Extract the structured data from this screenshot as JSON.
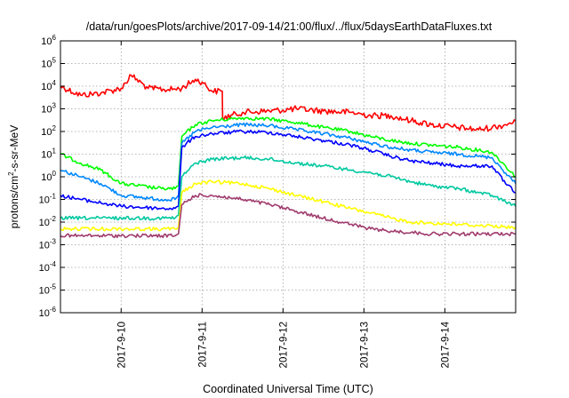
{
  "chart_data": {
    "type": "line",
    "title": "/data/run/goesPlots/archive/2017-09-14/21:00/flux/../flux/5daysEarthDataFluxes.txt",
    "xlabel": "Coordinated Universal Time (UTC)",
    "ylabel_prefix": "protons/cm",
    "ylabel_sup": "2",
    "ylabel_suffix": "-s-sr-MeV",
    "y_scale": "log",
    "ylim": [
      1e-06,
      1000000.0
    ],
    "y_ticks": [
      {
        "base": "10",
        "exp": "-6",
        "value": 1e-06
      },
      {
        "base": "10",
        "exp": "-5",
        "value": 1e-05
      },
      {
        "base": "10",
        "exp": "-4",
        "value": 0.0001
      },
      {
        "base": "10",
        "exp": "-3",
        "value": 0.001
      },
      {
        "base": "10",
        "exp": "-2",
        "value": 0.01
      },
      {
        "base": "10",
        "exp": "-1",
        "value": 0.1
      },
      {
        "base": "10",
        "exp": "0",
        "value": 1
      },
      {
        "base": "10",
        "exp": "1",
        "value": 10
      },
      {
        "base": "10",
        "exp": "2",
        "value": 100
      },
      {
        "base": "10",
        "exp": "3",
        "value": 1000
      },
      {
        "base": "10",
        "exp": "4",
        "value": 10000
      },
      {
        "base": "10",
        "exp": "5",
        "value": 100000
      },
      {
        "base": "10",
        "exp": "6",
        "value": 1000000
      }
    ],
    "xlim": [
      "2017-09-09 06:00",
      "2017-09-14 21:00"
    ],
    "x_ticks": [
      {
        "label": "2017-9-10",
        "value": "2017-09-10 00:00"
      },
      {
        "label": "2017-9-11",
        "value": "2017-09-11 00:00"
      },
      {
        "label": "2017-9-12",
        "value": "2017-09-12 00:00"
      },
      {
        "label": "2017-9-13",
        "value": "2017-09-13 00:00"
      },
      {
        "label": "2017-9-14",
        "value": "2017-09-14 00:00"
      }
    ],
    "grid": true,
    "series": [
      {
        "color": "#ff0000",
        "x": [
          "2017-09-09 06:00",
          "2017-09-09 12:00",
          "2017-09-09 18:00",
          "2017-09-10 00:00",
          "2017-09-10 03:00",
          "2017-09-10 08:00",
          "2017-09-10 14:00",
          "2017-09-10 18:00",
          "2017-09-10 22:00",
          "2017-09-11 00:00",
          "2017-09-11 03:00",
          "2017-09-11 06:00",
          "2017-09-11 06:05",
          "2017-09-11 12:00",
          "2017-09-11 20:00",
          "2017-09-12 04:00",
          "2017-09-12 12:00",
          "2017-09-12 20:00",
          "2017-09-13 02:00",
          "2017-09-13 08:00",
          "2017-09-13 14:00",
          "2017-09-13 20:00",
          "2017-09-14 04:00",
          "2017-09-14 10:00",
          "2017-09-14 14:00",
          "2017-09-14 18:00",
          "2017-09-14 21:00"
        ],
        "y": [
          10000,
          4000,
          5000,
          8000,
          30000,
          8000,
          7000,
          8000,
          20000,
          15000,
          6000,
          6000,
          400,
          700,
          800,
          1000,
          800,
          700,
          500,
          500,
          300,
          200,
          150,
          120,
          150,
          200,
          300
        ]
      },
      {
        "color": "#00ff00",
        "x": [
          "2017-09-09 06:00",
          "2017-09-09 12:00",
          "2017-09-09 18:00",
          "2017-09-10 00:00",
          "2017-09-10 12:00",
          "2017-09-10 16:00",
          "2017-09-10 17:00",
          "2017-09-10 18:00",
          "2017-09-10 22:00",
          "2017-09-11 03:00",
          "2017-09-11 12:00",
          "2017-09-11 20:00",
          "2017-09-12 04:00",
          "2017-09-12 12:00",
          "2017-09-12 20:00",
          "2017-09-13 02:00",
          "2017-09-13 08:00",
          "2017-09-13 14:00",
          "2017-09-13 20:00",
          "2017-09-14 04:00",
          "2017-09-14 10:00",
          "2017-09-14 14:00",
          "2017-09-14 18:00",
          "2017-09-14 21:00"
        ],
        "y": [
          10,
          4,
          2,
          0.5,
          0.3,
          0.3,
          0.4,
          60,
          200,
          300,
          400,
          350,
          250,
          150,
          100,
          60,
          40,
          30,
          25,
          20,
          15,
          12,
          3,
          1
        ]
      },
      {
        "color": "#0088ff",
        "x": [
          "2017-09-09 06:00",
          "2017-09-09 12:00",
          "2017-09-09 18:00",
          "2017-09-10 00:00",
          "2017-09-10 12:00",
          "2017-09-10 16:00",
          "2017-09-10 17:00",
          "2017-09-10 18:00",
          "2017-09-10 22:00",
          "2017-09-11 03:00",
          "2017-09-11 12:00",
          "2017-09-11 20:00",
          "2017-09-12 04:00",
          "2017-09-12 12:00",
          "2017-09-12 20:00",
          "2017-09-13 02:00",
          "2017-09-13 08:00",
          "2017-09-13 14:00",
          "2017-09-13 20:00",
          "2017-09-14 04:00",
          "2017-09-14 10:00",
          "2017-09-14 14:00",
          "2017-09-14 18:00",
          "2017-09-14 21:00"
        ],
        "y": [
          2,
          1,
          0.5,
          0.15,
          0.1,
          0.1,
          0.15,
          30,
          100,
          150,
          200,
          180,
          120,
          80,
          50,
          30,
          20,
          15,
          12,
          10,
          8,
          7,
          1.5,
          0.5
        ]
      },
      {
        "color": "#0000ff",
        "x": [
          "2017-09-09 06:00",
          "2017-09-09 12:00",
          "2017-09-09 18:00",
          "2017-09-10 00:00",
          "2017-09-10 12:00",
          "2017-09-10 16:00",
          "2017-09-10 17:00",
          "2017-09-10 18:00",
          "2017-09-10 22:00",
          "2017-09-11 03:00",
          "2017-09-11 12:00",
          "2017-09-11 20:00",
          "2017-09-12 04:00",
          "2017-09-12 12:00",
          "2017-09-12 20:00",
          "2017-09-13 02:00",
          "2017-09-13 08:00",
          "2017-09-13 14:00",
          "2017-09-13 20:00",
          "2017-09-14 04:00",
          "2017-09-14 10:00",
          "2017-09-14 14:00",
          "2017-09-14 18:00",
          "2017-09-14 21:00"
        ],
        "y": [
          0.15,
          0.1,
          0.07,
          0.05,
          0.04,
          0.04,
          0.05,
          20,
          60,
          80,
          100,
          90,
          60,
          40,
          25,
          15,
          8,
          5,
          4,
          3,
          3,
          3,
          0.5,
          0.2
        ]
      },
      {
        "color": "#00c8a0",
        "x": [
          "2017-09-09 06:00",
          "2017-09-09 12:00",
          "2017-09-09 18:00",
          "2017-09-10 00:00",
          "2017-09-10 12:00",
          "2017-09-10 16:00",
          "2017-09-10 17:00",
          "2017-09-10 18:00",
          "2017-09-10 22:00",
          "2017-09-11 03:00",
          "2017-09-11 12:00",
          "2017-09-11 20:00",
          "2017-09-12 04:00",
          "2017-09-12 12:00",
          "2017-09-12 20:00",
          "2017-09-13 02:00",
          "2017-09-13 08:00",
          "2017-09-13 14:00",
          "2017-09-13 20:00",
          "2017-09-14 04:00",
          "2017-09-14 10:00",
          "2017-09-14 14:00",
          "2017-09-14 18:00",
          "2017-09-14 21:00"
        ],
        "y": [
          0.015,
          0.015,
          0.015,
          0.015,
          0.015,
          0.015,
          0.02,
          1,
          4,
          6,
          7,
          6,
          4,
          3,
          2,
          1.5,
          1,
          0.6,
          0.4,
          0.3,
          0.2,
          0.15,
          0.08,
          0.05
        ]
      },
      {
        "color": "#ffff00",
        "x": [
          "2017-09-09 06:00",
          "2017-09-09 12:00",
          "2017-09-09 18:00",
          "2017-09-10 00:00",
          "2017-09-10 12:00",
          "2017-09-10 16:00",
          "2017-09-10 17:00",
          "2017-09-10 18:00",
          "2017-09-10 22:00",
          "2017-09-11 03:00",
          "2017-09-11 12:00",
          "2017-09-11 20:00",
          "2017-09-12 04:00",
          "2017-09-12 12:00",
          "2017-09-12 20:00",
          "2017-09-13 02:00",
          "2017-09-13 08:00",
          "2017-09-13 14:00",
          "2017-09-13 20:00",
          "2017-09-14 04:00",
          "2017-09-14 10:00",
          "2017-09-14 14:00",
          "2017-09-14 18:00",
          "2017-09-14 21:00"
        ],
        "y": [
          0.005,
          0.005,
          0.005,
          0.005,
          0.005,
          0.005,
          0.006,
          0.2,
          0.5,
          0.6,
          0.5,
          0.3,
          0.15,
          0.08,
          0.04,
          0.025,
          0.015,
          0.01,
          0.009,
          0.008,
          0.007,
          0.007,
          0.006,
          0.006
        ]
      },
      {
        "color": "#a03c6e",
        "x": [
          "2017-09-09 06:00",
          "2017-09-09 12:00",
          "2017-09-09 18:00",
          "2017-09-10 00:00",
          "2017-09-10 12:00",
          "2017-09-10 16:00",
          "2017-09-10 17:00",
          "2017-09-10 18:00",
          "2017-09-10 22:00",
          "2017-09-11 03:00",
          "2017-09-11 12:00",
          "2017-09-11 20:00",
          "2017-09-12 04:00",
          "2017-09-12 12:00",
          "2017-09-12 20:00",
          "2017-09-13 02:00",
          "2017-09-13 08:00",
          "2017-09-13 14:00",
          "2017-09-13 20:00",
          "2017-09-14 04:00",
          "2017-09-14 10:00",
          "2017-09-14 14:00",
          "2017-09-14 18:00",
          "2017-09-14 21:00"
        ],
        "y": [
          0.0025,
          0.0025,
          0.0025,
          0.0025,
          0.0025,
          0.0025,
          0.003,
          0.06,
          0.15,
          0.15,
          0.1,
          0.06,
          0.03,
          0.015,
          0.008,
          0.005,
          0.004,
          0.0035,
          0.003,
          0.003,
          0.003,
          0.003,
          0.003,
          0.003
        ]
      }
    ]
  }
}
